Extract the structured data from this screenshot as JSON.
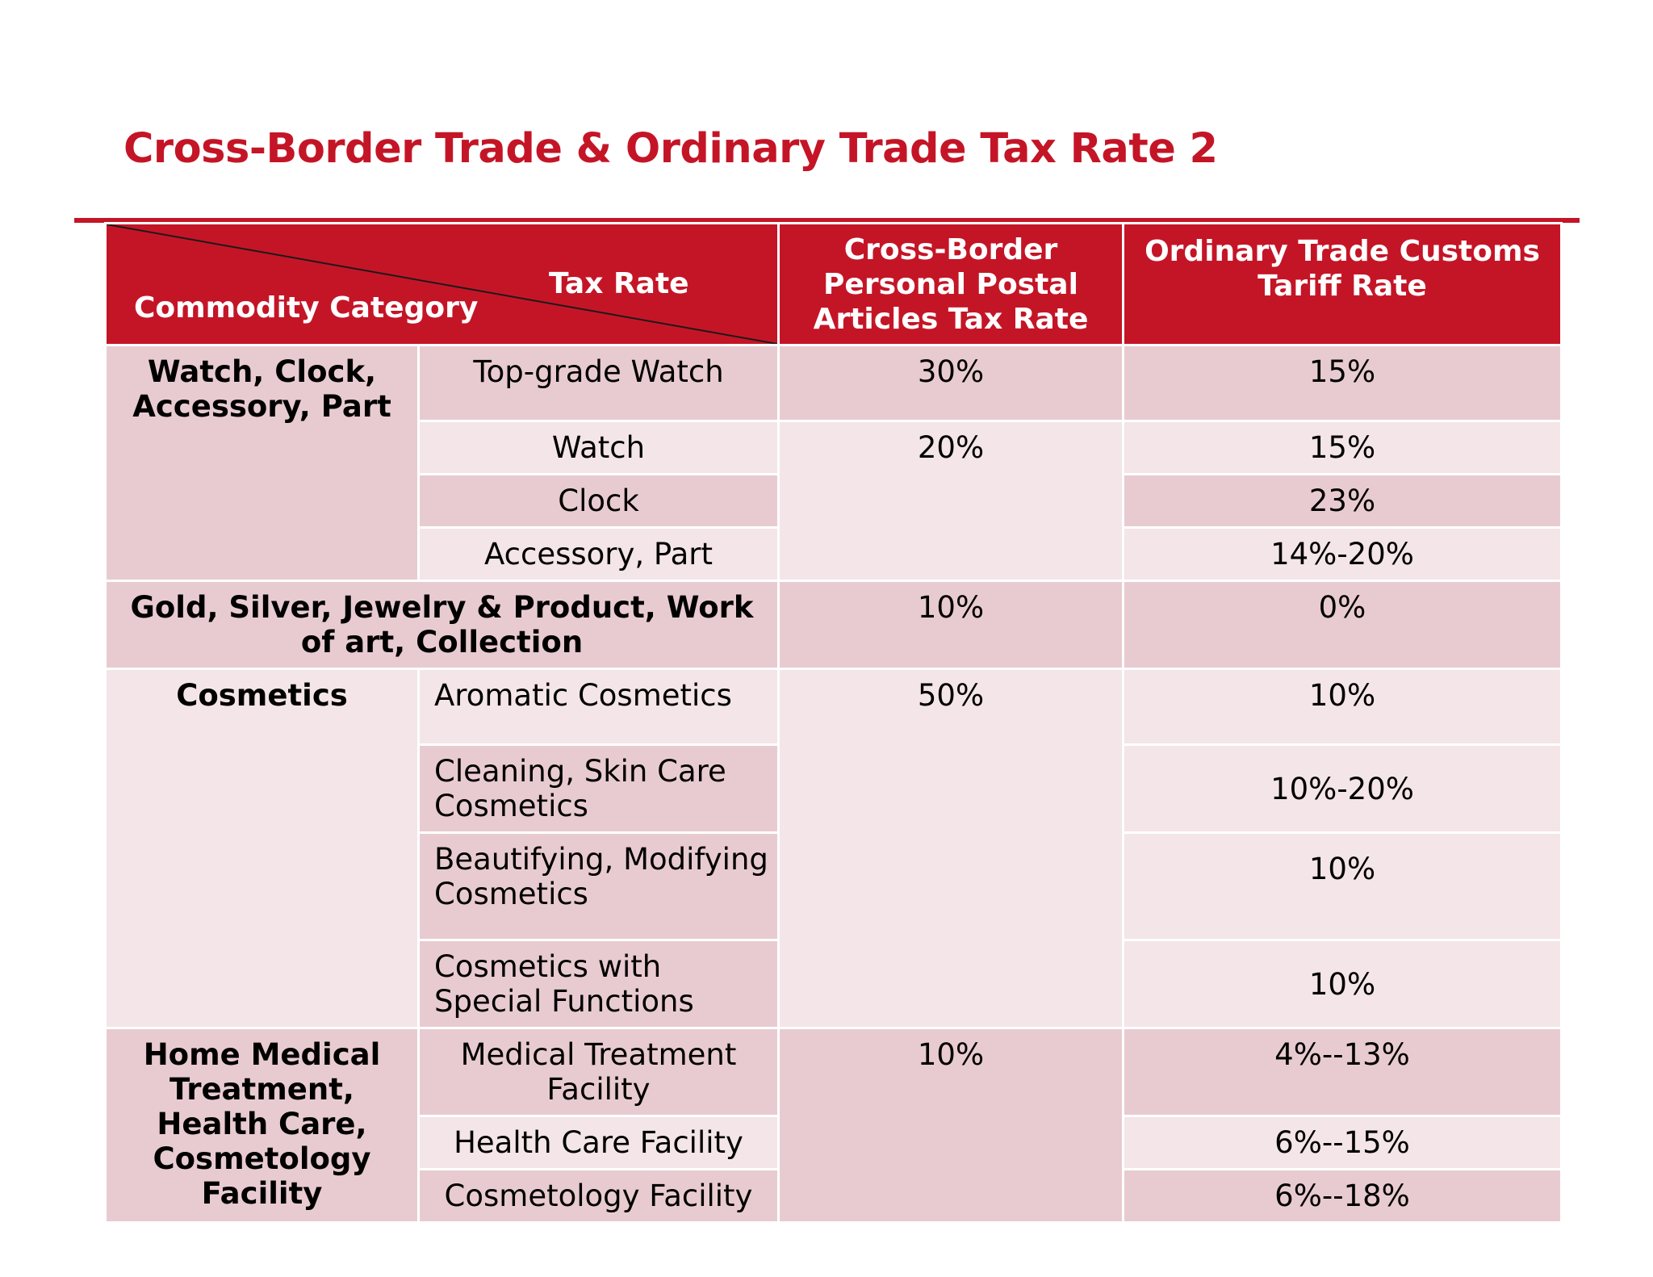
{
  "title": "Cross-Border Trade & Ordinary Trade Tax Rate 2",
  "table": {
    "header": {
      "diag_top": "Tax Rate",
      "diag_bottom": "Commodity Category",
      "col_cross_border": "Cross-Border Personal Postal Articles Tax Rate",
      "col_ordinary": "Ordinary Trade  Customs Tariff Rate"
    },
    "groups": [
      {
        "category": "Watch, Clock, Accessory, Part",
        "items": [
          {
            "name": "Top-grade Watch",
            "cross": "30%",
            "ordinary": "15%"
          },
          {
            "name": "Watch",
            "cross": "20%",
            "ordinary": "15%"
          },
          {
            "name": "Clock",
            "ordinary": "23%"
          },
          {
            "name": "Accessory, Part",
            "ordinary": "14%-20%"
          }
        ]
      },
      {
        "category": "Gold, Silver, Jewelry & Product, Work of art, Collection",
        "cross": "10%",
        "ordinary": "0%"
      },
      {
        "category": "Cosmetics",
        "cross": "50%",
        "items": [
          {
            "name": "Aromatic Cosmetics",
            "ordinary": "10%"
          },
          {
            "name": "Cleaning, Skin Care Cosmetics",
            "ordinary": "10%-20%"
          },
          {
            "name": "Beautifying, Modifying Cosmetics",
            "ordinary": "10%"
          },
          {
            "name": "Cosmetics with Special Functions",
            "ordinary": "10%"
          }
        ]
      },
      {
        "category": "Home Medical Treatment, Health Care, Cosmetology Facility",
        "cross": "10%",
        "items": [
          {
            "name": "Medical Treatment Facility",
            "ordinary": "4%--13%"
          },
          {
            "name": "Health Care Facility",
            "ordinary": "6%--15%"
          },
          {
            "name": "Cosmetology Facility",
            "ordinary": "6%--18%"
          }
        ]
      }
    ]
  }
}
